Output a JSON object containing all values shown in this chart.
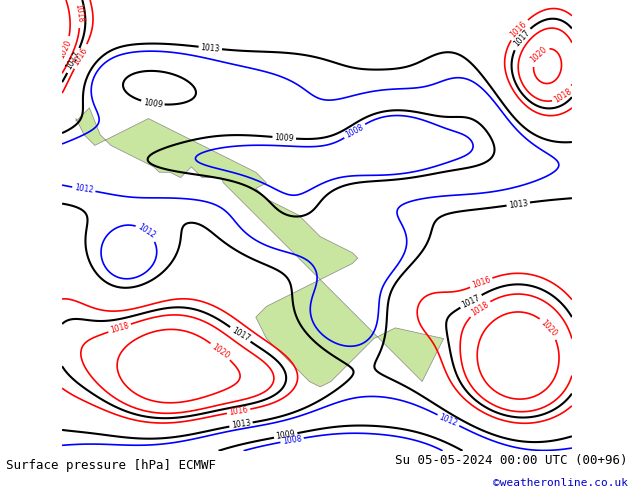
{
  "title_left": "Surface pressure [hPa] ECMWF",
  "title_right": "Su 05-05-2024 00:00 UTC (00+96)",
  "credit": "©weatheronline.co.uk",
  "credit_color": "#0000cc",
  "land_color": "#c8e6a0",
  "ocean_color": "#c8c8c8",
  "fig_width": 6.34,
  "fig_height": 4.9,
  "dpi": 100,
  "bottom_text_color": "#000000",
  "bottom_bg_color": "#ffffff",
  "font_size_bottom": 9,
  "map_extent": [
    -20,
    75,
    -47,
    37
  ],
  "black_levels": [
    1009,
    1013,
    1017
  ],
  "blue_levels": [
    1004,
    1008,
    1012
  ],
  "red_levels": [
    1016,
    1018,
    1020,
    1024
  ]
}
